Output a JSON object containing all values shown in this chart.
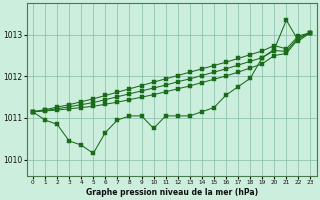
{
  "title": "Graphe pression niveau de la mer (hPa)",
  "background_color": "#cceedd",
  "grid_color": "#88bbaa",
  "line_color": "#1a6b1a",
  "x_min": -0.5,
  "x_max": 23.5,
  "y_min": 1009.6,
  "y_max": 1013.75,
  "y_ticks": [
    1010,
    1011,
    1012,
    1013
  ],
  "x_ticks": [
    0,
    1,
    2,
    3,
    4,
    5,
    6,
    7,
    8,
    9,
    10,
    11,
    12,
    13,
    14,
    15,
    16,
    17,
    18,
    19,
    20,
    21,
    22,
    23
  ],
  "series_jagged": [
    1011.15,
    1010.95,
    1010.85,
    1010.45,
    1010.35,
    1010.15,
    1010.65,
    1010.95,
    1011.05,
    1011.05,
    1010.75,
    1011.05,
    1011.05,
    1011.05,
    1011.15,
    1011.25,
    1011.55,
    1011.75,
    1011.95,
    1012.45,
    1012.65,
    1013.35,
    1012.85,
    1013.05
  ],
  "series_trend1": [
    1011.15,
    1011.17,
    1011.19,
    1011.22,
    1011.25,
    1011.28,
    1011.33,
    1011.38,
    1011.44,
    1011.5,
    1011.56,
    1011.63,
    1011.7,
    1011.77,
    1011.85,
    1011.93,
    1012.01,
    1012.1,
    1012.2,
    1012.3,
    1012.5,
    1012.55,
    1012.9,
    1013.05
  ],
  "series_trend2": [
    1011.15,
    1011.18,
    1011.22,
    1011.27,
    1011.32,
    1011.37,
    1011.44,
    1011.51,
    1011.58,
    1011.65,
    1011.72,
    1011.79,
    1011.87,
    1011.94,
    1012.02,
    1012.1,
    1012.18,
    1012.27,
    1012.36,
    1012.45,
    1012.62,
    1012.6,
    1012.93,
    1013.05
  ],
  "series_trend3": [
    1011.15,
    1011.2,
    1011.26,
    1011.32,
    1011.39,
    1011.46,
    1011.54,
    1011.62,
    1011.7,
    1011.78,
    1011.86,
    1011.94,
    1012.02,
    1012.1,
    1012.18,
    1012.26,
    1012.34,
    1012.43,
    1012.52,
    1012.61,
    1012.74,
    1012.66,
    1012.97,
    1013.05
  ]
}
